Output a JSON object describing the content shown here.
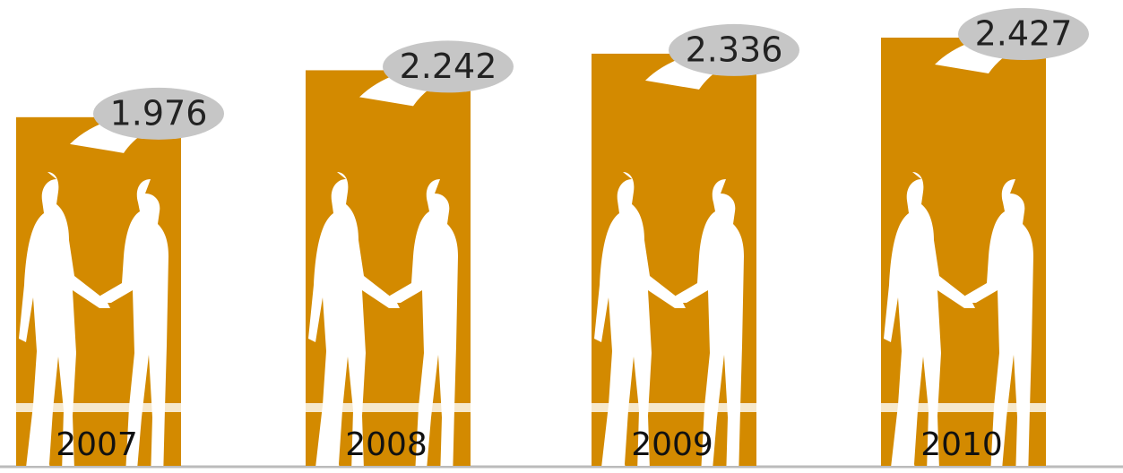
{
  "chart_data": {
    "type": "bar",
    "categories": [
      "2007",
      "2008",
      "2009",
      "2010"
    ],
    "values": [
      1.976,
      2.242,
      2.336,
      2.427
    ],
    "color": "#d38a00"
  }
}
